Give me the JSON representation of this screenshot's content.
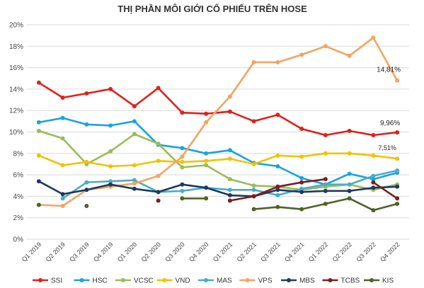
{
  "chart_data": {
    "type": "line",
    "title": "THỊ PHẦN MÔI GIỚI CỔ PHIẾU TRÊN HOSE",
    "xlabel": "",
    "ylabel": "",
    "categories": [
      "Q1 2019",
      "Q2 2019",
      "Q3 2019",
      "Q4 2019",
      "Q1 2020",
      "Q2 2020",
      "Q3 2020",
      "Q4 2020",
      "Q1 2021",
      "Q2 2021",
      "Q3 2021",
      "Q4 2021",
      "Q1 2022",
      "Q2 2022",
      "Q3 2022",
      "Q4 2022"
    ],
    "ylim": [
      0,
      20
    ],
    "yticks": [
      0,
      2,
      4,
      6,
      8,
      10,
      12,
      14,
      16,
      18,
      20
    ],
    "ytick_labels": [
      "0%",
      "2%",
      "4%",
      "6%",
      "8%",
      "10%",
      "12%",
      "14%",
      "16%",
      "18%",
      "20%"
    ],
    "grid": true,
    "legend_position": "bottom",
    "series": [
      {
        "name": "SSI",
        "color": "#e0201b",
        "values": [
          14.6,
          13.2,
          13.6,
          14.0,
          12.4,
          14.1,
          11.8,
          11.7,
          11.9,
          11.0,
          11.6,
          10.3,
          9.7,
          10.1,
          9.7,
          9.96
        ]
      },
      {
        "name": "HSC",
        "color": "#1aa3e0",
        "values": [
          10.9,
          11.3,
          10.7,
          10.6,
          11.0,
          8.8,
          8.5,
          8.0,
          8.3,
          7.1,
          6.8,
          5.7,
          5.1,
          6.1,
          5.6,
          6.2
        ]
      },
      {
        "name": "VCSC",
        "color": "#9bbb59",
        "values": [
          10.1,
          9.4,
          7.0,
          8.2,
          9.8,
          8.9,
          6.7,
          6.9,
          5.6,
          5.0,
          4.9,
          4.6,
          4.9,
          5.1,
          4.6,
          5.1
        ]
      },
      {
        "name": "VND",
        "color": "#f2c200",
        "values": [
          7.8,
          6.9,
          7.2,
          6.8,
          6.9,
          7.3,
          7.2,
          7.3,
          7.5,
          7.0,
          7.8,
          7.7,
          8.0,
          8.0,
          7.8,
          7.51
        ]
      },
      {
        "name": "MAS",
        "color": "#4bacc6",
        "values": [
          null,
          3.8,
          5.3,
          5.4,
          5.5,
          4.4,
          4.5,
          4.8,
          4.6,
          4.6,
          4.1,
          4.7,
          5.1,
          5.1,
          5.9,
          6.4
        ]
      },
      {
        "name": "VPS",
        "color": "#f4a460",
        "values": [
          3.2,
          3.1,
          4.6,
          4.9,
          5.2,
          5.9,
          7.7,
          10.9,
          13.3,
          16.5,
          16.5,
          17.2,
          18.0,
          17.1,
          18.8,
          14.81
        ]
      },
      {
        "name": "MBS",
        "color": "#1f3a5f",
        "values": [
          5.4,
          4.2,
          4.6,
          5.1,
          4.7,
          4.4,
          5.1,
          4.8,
          4.1,
          4.0,
          4.6,
          4.4,
          4.5,
          4.5,
          4.8,
          4.9
        ]
      },
      {
        "name": "TCBS",
        "color": "#7b1e1e",
        "values": [
          null,
          null,
          null,
          null,
          null,
          3.6,
          null,
          null,
          3.6,
          4.0,
          4.9,
          5.3,
          5.6,
          null,
          5.3,
          3.8
        ]
      },
      {
        "name": "KIS",
        "color": "#4f6228",
        "values": [
          3.2,
          null,
          3.1,
          null,
          null,
          null,
          3.8,
          3.8,
          null,
          2.8,
          3.0,
          2.8,
          3.3,
          3.8,
          2.7,
          3.3
        ]
      }
    ],
    "annotations": [
      {
        "series": "VPS",
        "text": "14,81%"
      },
      {
        "series": "SSI",
        "text": "9,96%"
      },
      {
        "series": "VND",
        "text": "7,51%"
      }
    ]
  }
}
